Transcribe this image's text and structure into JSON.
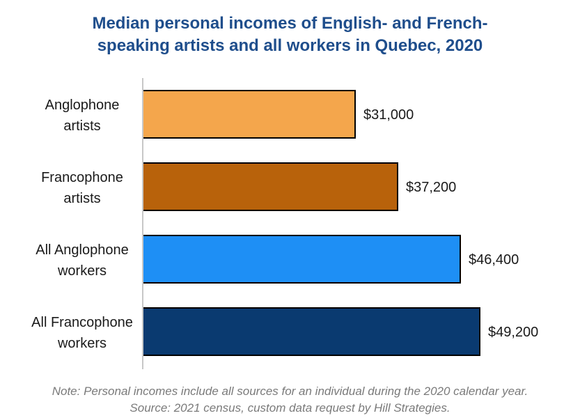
{
  "chart_data": {
    "type": "bar",
    "orientation": "horizontal",
    "title_lines": [
      "Median personal incomes of English- and French-",
      "speaking artists and all workers in Quebec, 2020"
    ],
    "categories": [
      [
        "Anglophone",
        "artists"
      ],
      [
        "Francophone",
        "artists"
      ],
      [
        "All Anglophone",
        "workers"
      ],
      [
        "All Francophone",
        "workers"
      ]
    ],
    "values": [
      31000,
      37200,
      46400,
      49200
    ],
    "value_labels": [
      "$31,000",
      "$37,200",
      "$46,400",
      "$49,200"
    ],
    "colors": [
      "#f4a64c",
      "#b8620b",
      "#1e8ff5",
      "#0a3a70"
    ],
    "xlim": [
      0,
      60000
    ],
    "grid": false,
    "legend": "none"
  },
  "notes": {
    "line1": "Note: Personal incomes include all sources for an individual during the 2020 calendar year.",
    "line2": "Source: 2021 census, custom data request by Hill Strategies."
  }
}
